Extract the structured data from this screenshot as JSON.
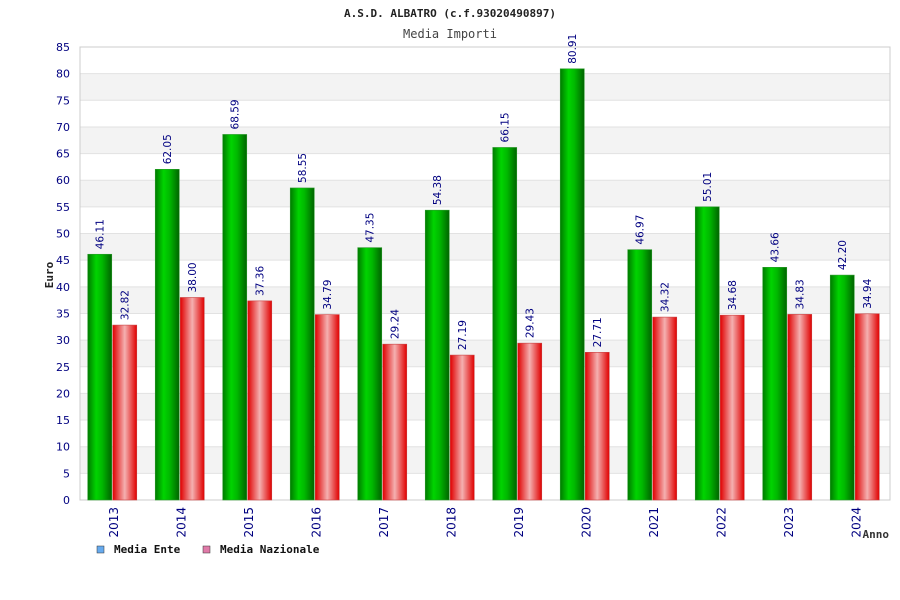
{
  "chart_data": {
    "type": "bar",
    "title": "A.S.D. ALBATRO (c.f.93020490897)",
    "subtitle": "Media Importi",
    "xlabel": "Anno",
    "ylabel": "Euro",
    "ylim": [
      0,
      85
    ],
    "ytick_step": 5,
    "grid": true,
    "legend_position": "bottom-left",
    "categories": [
      "2013",
      "2014",
      "2015",
      "2016",
      "2017",
      "2018",
      "2019",
      "2020",
      "2021",
      "2022",
      "2023",
      "2024"
    ],
    "series": [
      {
        "name": "Media Ente",
        "values": [
          46.11,
          62.05,
          68.59,
          58.55,
          47.35,
          54.38,
          66.15,
          80.91,
          46.97,
          55.01,
          43.66,
          42.2
        ],
        "labels": [
          "46.11",
          "62.05",
          "68.59",
          "58.55",
          "47.35",
          "54.38",
          "66.15",
          "80.91",
          "46.97",
          "55.01",
          "43.66",
          "42.20"
        ],
        "color": "#00cc00",
        "legend_color": "#66aaee"
      },
      {
        "name": "Media Nazionale",
        "values": [
          32.82,
          38.0,
          37.36,
          34.79,
          29.24,
          27.19,
          29.43,
          27.71,
          34.32,
          34.68,
          34.83,
          34.94
        ],
        "labels": [
          "32.82",
          "38.00",
          "37.36",
          "34.79",
          "29.24",
          "27.19",
          "29.43",
          "27.71",
          "34.32",
          "34.68",
          "34.83",
          "34.94"
        ],
        "color": "#ff0000",
        "legend_color": "#e07aa8"
      }
    ]
  }
}
